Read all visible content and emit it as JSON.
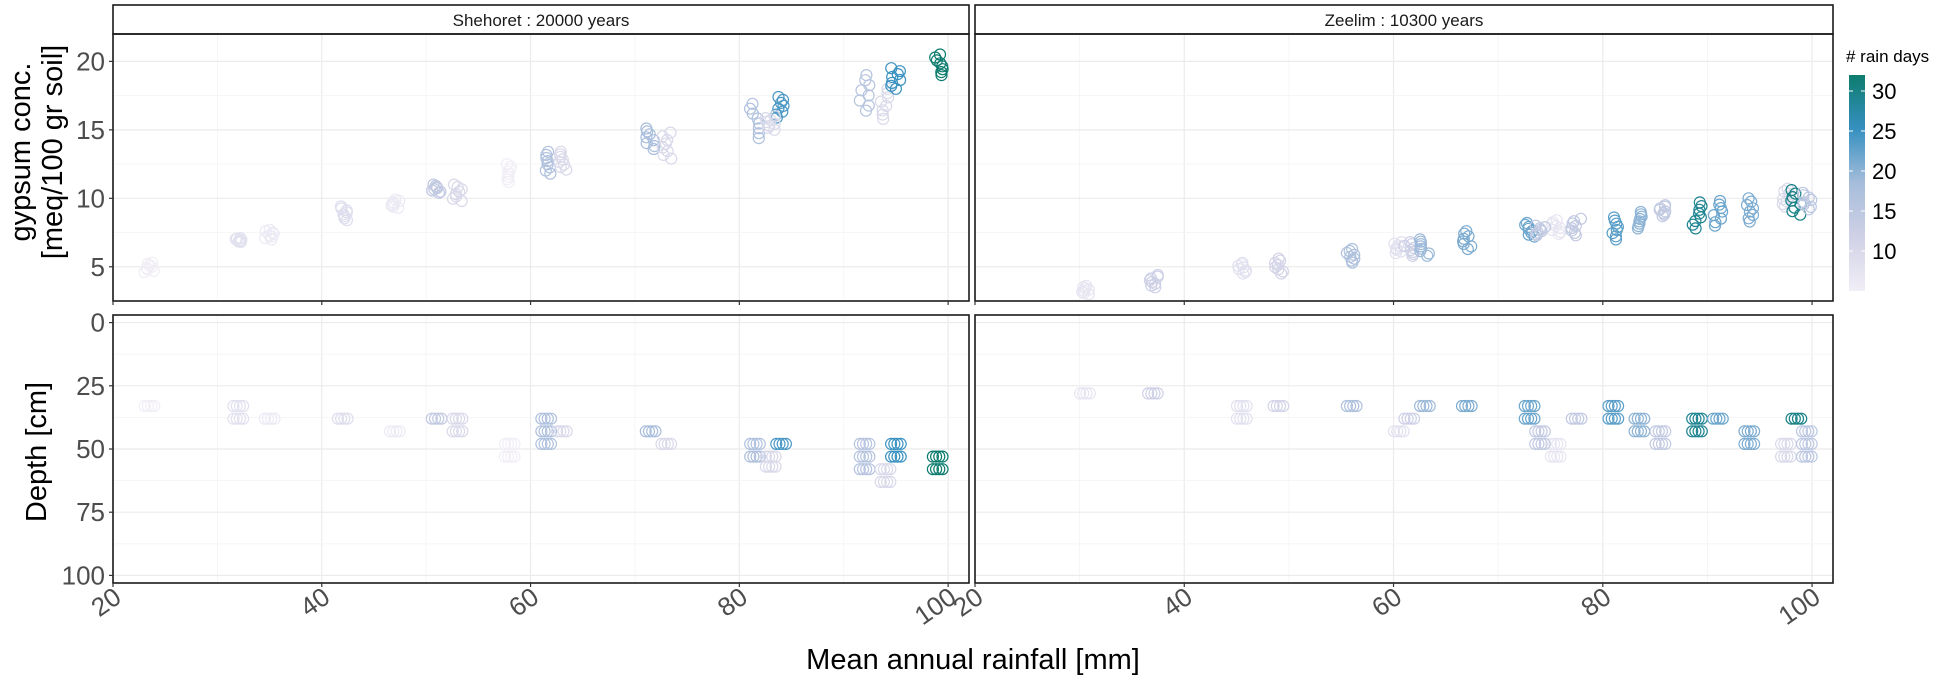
{
  "chart_data": {
    "type": "scatter",
    "x_label": "Mean annual rainfall [mm]",
    "x_ticks": [
      "20",
      "40",
      "60",
      "80",
      "100"
    ],
    "xlim": [
      20,
      102
    ],
    "facets": [
      {
        "id": "shehoret",
        "label": "Shehoret :  20000  years"
      },
      {
        "id": "zeelim",
        "label": "Zeelim :  10300  years"
      }
    ],
    "rows": [
      {
        "id": "gypsum",
        "label_line1": "gypsum conc.",
        "label_line2": "[meq/100 gr soil]",
        "ylim": [
          2.5,
          22
        ],
        "reversed": false,
        "y_ticks": [
          "5",
          "10",
          "15",
          "20"
        ],
        "y_tick_values": [
          5,
          10,
          15,
          20
        ]
      },
      {
        "id": "depth",
        "label_line1": "Depth [cm]",
        "label_line2": "",
        "ylim": [
          -3,
          103
        ],
        "reversed": true,
        "y_ticks": [
          "0",
          "25",
          "50",
          "75",
          "100"
        ],
        "y_tick_values": [
          0,
          25,
          50,
          75,
          100
        ]
      }
    ],
    "color_legend": {
      "title": "# rain days",
      "ticks": [
        "10",
        "15",
        "20",
        "25",
        "30"
      ],
      "tick_values": [
        10,
        15,
        20,
        25,
        30
      ],
      "range": [
        5,
        32
      ],
      "colors": [
        "#f1eef6",
        "#d0d1e6",
        "#a6bddb",
        "#3690c0",
        "#0d7c6e"
      ]
    },
    "clusters": {
      "shehoret": [
        {
          "x": 23.5,
          "rain": 5,
          "gyp": [
            4.6,
            5.3
          ],
          "depth": [
            33
          ]
        },
        {
          "x": 32,
          "rain": 8,
          "gyp": [
            6.8,
            7.1
          ],
          "depth": [
            33,
            38
          ]
        },
        {
          "x": 35,
          "rain": 6,
          "gyp": [
            7.0,
            7.7
          ],
          "depth": [
            38
          ]
        },
        {
          "x": 42,
          "rain": 9,
          "gyp": [
            8.4,
            9.4
          ],
          "depth": [
            38
          ]
        },
        {
          "x": 47,
          "rain": 6,
          "gyp": [
            9.3,
            9.9
          ],
          "depth": [
            43
          ]
        },
        {
          "x": 51,
          "rain": 14,
          "gyp": [
            10.4,
            11.0
          ],
          "depth": [
            38
          ]
        },
        {
          "x": 53,
          "rain": 10,
          "gyp": [
            9.8,
            11.0
          ],
          "depth": [
            38,
            43
          ]
        },
        {
          "x": 58,
          "rain": 5,
          "gyp": [
            11.2,
            12.5
          ],
          "depth": [
            48,
            53
          ]
        },
        {
          "x": 61.5,
          "rain": 17,
          "gyp": [
            11.8,
            13.4
          ],
          "depth": [
            38,
            43,
            48
          ]
        },
        {
          "x": 63,
          "rain": 10,
          "gyp": [
            12.1,
            13.4
          ],
          "depth": [
            43
          ]
        },
        {
          "x": 71.5,
          "rain": 18,
          "gyp": [
            13.6,
            15.1
          ],
          "depth": [
            43
          ]
        },
        {
          "x": 73,
          "rain": 10,
          "gyp": [
            12.9,
            14.8
          ],
          "depth": [
            48
          ]
        },
        {
          "x": 81.5,
          "rain": 17,
          "gyp": [
            14.4,
            16.9
          ],
          "depth": [
            48,
            53
          ]
        },
        {
          "x": 84,
          "rain": 24,
          "gyp": [
            15.9,
            17.4
          ],
          "depth": [
            48
          ]
        },
        {
          "x": 83,
          "rain": 10,
          "gyp": [
            15.0,
            16.0
          ],
          "depth": [
            53,
            57
          ]
        },
        {
          "x": 92,
          "rain": 16,
          "gyp": [
            16.4,
            19.0
          ],
          "depth": [
            48,
            53,
            58
          ]
        },
        {
          "x": 94,
          "rain": 10,
          "gyp": [
            15.8,
            18.0
          ],
          "depth": [
            58,
            63
          ]
        },
        {
          "x": 95,
          "rain": 25,
          "gyp": [
            18.0,
            19.5
          ],
          "depth": [
            48,
            53
          ]
        },
        {
          "x": 99,
          "rain": 32,
          "gyp": [
            19.0,
            20.5
          ],
          "depth": [
            53,
            58
          ]
        }
      ],
      "zeelim": [
        {
          "x": 30.5,
          "rain": 7,
          "gyp": [
            3.0,
            3.6
          ],
          "depth": [
            28
          ]
        },
        {
          "x": 37,
          "rain": 12,
          "gyp": [
            3.5,
            4.4
          ],
          "depth": [
            28
          ]
        },
        {
          "x": 45.5,
          "rain": 8,
          "gyp": [
            4.5,
            5.3
          ],
          "depth": [
            33,
            38
          ]
        },
        {
          "x": 49,
          "rain": 11,
          "gyp": [
            4.5,
            5.6
          ],
          "depth": [
            33
          ]
        },
        {
          "x": 56,
          "rain": 17,
          "gyp": [
            5.3,
            6.3
          ],
          "depth": [
            33
          ]
        },
        {
          "x": 60.5,
          "rain": 8,
          "gyp": [
            6.0,
            6.8
          ],
          "depth": [
            43
          ]
        },
        {
          "x": 61.5,
          "rain": 12,
          "gyp": [
            5.8,
            6.8
          ],
          "depth": [
            38
          ]
        },
        {
          "x": 63,
          "rain": 19,
          "gyp": [
            5.8,
            7.0
          ],
          "depth": [
            33
          ]
        },
        {
          "x": 67,
          "rain": 21,
          "gyp": [
            6.3,
            7.6
          ],
          "depth": [
            33
          ]
        },
        {
          "x": 73,
          "rain": 22,
          "gyp": [
            7.2,
            8.2
          ],
          "depth": [
            33,
            38
          ]
        },
        {
          "x": 75.5,
          "rain": 7,
          "gyp": [
            7.4,
            8.4
          ],
          "depth": [
            48,
            53
          ]
        },
        {
          "x": 74,
          "rain": 14,
          "gyp": [
            7.3,
            8.0
          ],
          "depth": [
            43,
            48
          ]
        },
        {
          "x": 77.5,
          "rain": 14,
          "gyp": [
            7.3,
            8.5
          ],
          "depth": [
            38
          ]
        },
        {
          "x": 81,
          "rain": 23,
          "gyp": [
            7.0,
            8.6
          ],
          "depth": [
            33,
            38
          ]
        },
        {
          "x": 83.5,
          "rain": 20,
          "gyp": [
            7.8,
            9.0
          ],
          "depth": [
            38,
            43
          ]
        },
        {
          "x": 85.5,
          "rain": 14,
          "gyp": [
            8.7,
            9.5
          ],
          "depth": [
            43,
            48
          ]
        },
        {
          "x": 89,
          "rain": 29,
          "gyp": [
            7.8,
            9.7
          ],
          "depth": [
            38,
            43
          ]
        },
        {
          "x": 91,
          "rain": 22,
          "gyp": [
            8.0,
            9.8
          ],
          "depth": [
            38
          ]
        },
        {
          "x": 94,
          "rain": 21,
          "gyp": [
            8.3,
            10.0
          ],
          "depth": [
            43,
            48
          ]
        },
        {
          "x": 97.5,
          "rain": 10,
          "gyp": [
            9.4,
            10.7
          ],
          "depth": [
            48,
            53
          ]
        },
        {
          "x": 98.5,
          "rain": 30,
          "gyp": [
            8.8,
            10.6
          ],
          "depth": [
            38
          ]
        },
        {
          "x": 99.5,
          "rain": 15,
          "gyp": [
            9.2,
            10.4
          ],
          "depth": [
            43,
            48,
            53
          ]
        }
      ]
    }
  }
}
